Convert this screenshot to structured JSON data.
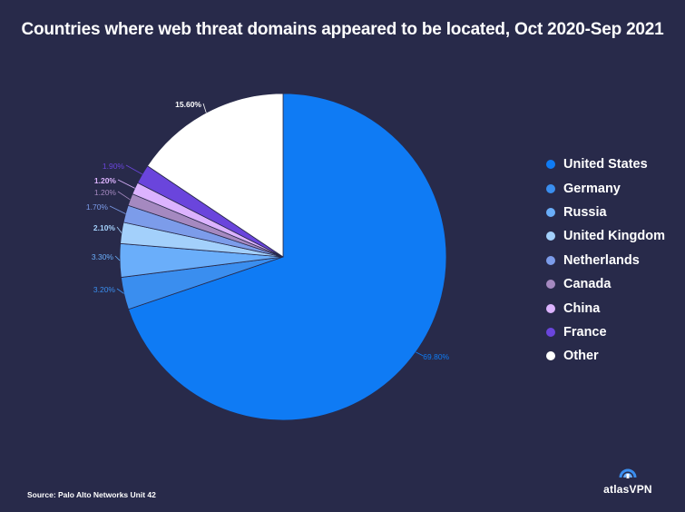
{
  "chart_data": {
    "type": "pie",
    "title": "Countries where web threat domains appeared to be located, Oct 2020-Sep 2021",
    "unit": "%",
    "categories": [
      "United States",
      "Germany",
      "Russia",
      "United Kingdom",
      "Netherlands",
      "Canada",
      "China",
      "France",
      "Other"
    ],
    "values": [
      69.8,
      3.2,
      3.3,
      2.1,
      1.7,
      1.2,
      1.2,
      1.9,
      15.6
    ],
    "value_labels": [
      "69.80%",
      "3.20%",
      "3.30%",
      "2.10%",
      "1.70%",
      "1.20%",
      "1.20%",
      "1.90%",
      "15.60%"
    ],
    "colors": [
      "#0f7bf4",
      "#3a8eef",
      "#6aaefa",
      "#a3d0fb",
      "#7c9cea",
      "#a589c0",
      "#dcb3ff",
      "#6a45dc",
      "#ffffff"
    ],
    "label_colors": [
      "#0f7bf4",
      "#3a8eef",
      "#6aaefa",
      "#a3d0fb",
      "#7c9cea",
      "#a589c0",
      "#dcb3ff",
      "#6a45dc",
      "#ffffff"
    ],
    "legend_position": "right"
  },
  "footer": {
    "source": "Source: Palo Alto Networks Unit 42",
    "brand": "atlasVPN"
  }
}
